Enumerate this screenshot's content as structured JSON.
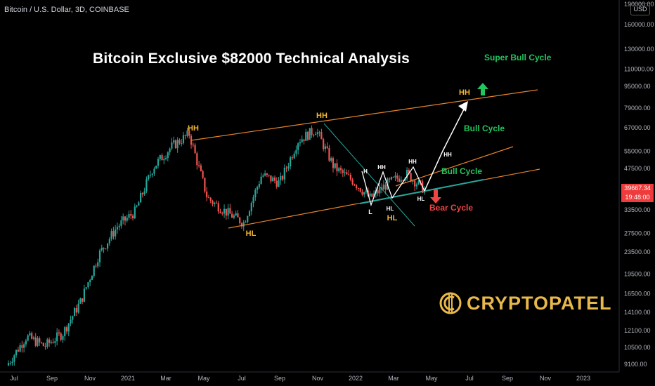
{
  "header": {
    "symbol": "Bitcoin / U.S. Dollar, 3D, COINBASE"
  },
  "title": "Bitcoin Exclusive $82000 Technical Analysis",
  "brand": {
    "name": "CRYPTOPATEL",
    "color": "#e8b84a"
  },
  "price_scale": {
    "currency": "USD",
    "last_price": "39667.34",
    "countdown": "19:48:00",
    "tag_color": "#ef3b3b"
  },
  "colors": {
    "up": "#26a69a",
    "down": "#ef5350",
    "channel": "#e8822a",
    "bull": "#22c55e",
    "bear": "#ef4444",
    "swing_label": "#f5b731",
    "arrow": "#ffffff",
    "trendline": "#26a69a"
  },
  "chart_data": {
    "type": "candlestick",
    "title": "Bitcoin Exclusive $82000 Technical Analysis",
    "symbol": "Bitcoin / U.S. Dollar, 3D, COINBASE",
    "scale": "log",
    "y_ticks": [
      "190000.00",
      "160000.00",
      "130000.00",
      "110000.00",
      "95000.00",
      "79000.00",
      "67000.00",
      "55000.00",
      "47500.00",
      "33500.00",
      "27500.00",
      "23500.00",
      "19500.00",
      "16500.00",
      "14100.00",
      "12100.00",
      "10500.00",
      "9100.00"
    ],
    "x_ticks": [
      "Jul",
      "Sep",
      "Nov",
      "2021",
      "Mar",
      "May",
      "Jul",
      "Sep",
      "Nov",
      "2022",
      "Mar",
      "May",
      "Jul",
      "Sep",
      "Nov",
      "2023"
    ],
    "last_price": 39667.34,
    "price_path": [
      [
        "Jul",
        9200
      ],
      [
        "Aug",
        11500
      ],
      [
        "Sep",
        10600
      ],
      [
        "Oct",
        11800
      ],
      [
        "Nov",
        15500
      ],
      [
        "Dec",
        23000
      ],
      [
        "2021",
        29000
      ],
      [
        "Jan",
        33000
      ],
      [
        "Feb",
        48000
      ],
      [
        "Mar",
        57000
      ],
      [
        "Apr",
        63500
      ],
      [
        "May",
        37000
      ],
      [
        "Jun",
        33000
      ],
      [
        "Jul",
        30000
      ],
      [
        "Aug",
        45000
      ],
      [
        "Sep",
        42000
      ],
      [
        "Oct",
        60000
      ],
      [
        "Nov",
        66000
      ],
      [
        "Dec",
        48000
      ],
      [
        "2022",
        43000
      ],
      [
        "Jan",
        37000
      ],
      [
        "Feb",
        42000
      ],
      [
        "Mar",
        45500
      ],
      [
        "Apr",
        39667
      ]
    ],
    "swing_labels": [
      {
        "text": "HH",
        "date": "Apr",
        "price": 65000
      },
      {
        "text": "HL",
        "date": "Jul",
        "price": 29000
      },
      {
        "text": "HH",
        "date": "Nov",
        "price": 69000
      },
      {
        "text": "H",
        "date": "Jan",
        "price": 46000
      },
      {
        "text": "L",
        "date": "Jan",
        "price": 34500
      },
      {
        "text": "HH",
        "date": "Feb",
        "price": 45000
      },
      {
        "text": "HL",
        "date": "Feb",
        "price": 35000
      },
      {
        "text": "HL",
        "date": "Feb",
        "price": 31500
      },
      {
        "text": "HH",
        "date": "Mar",
        "price": 48000
      },
      {
        "text": "HL",
        "date": "Apr",
        "price": 36800
      },
      {
        "text": "HH",
        "date": "May",
        "price": 52000
      },
      {
        "text": "HH",
        "date": "Jun",
        "price": 87000
      }
    ],
    "annotations": [
      "Super Bull Cycle",
      "Bull Cycle",
      "Bull Cycle",
      "Bear Cycle"
    ],
    "target_price": 82000,
    "channel": "ascending",
    "grid": false
  },
  "annotation_labels": {
    "swing": [
      "HH",
      "HL",
      "HH",
      "H",
      "L",
      "HH",
      "HL",
      "HL",
      "HH",
      "HL",
      "HH",
      "HH"
    ],
    "super_bull": "Super Bull Cycle",
    "bull_1": "Bull Cycle",
    "bull_2": "Bull Cycle",
    "bear": "Bear Cycle"
  }
}
